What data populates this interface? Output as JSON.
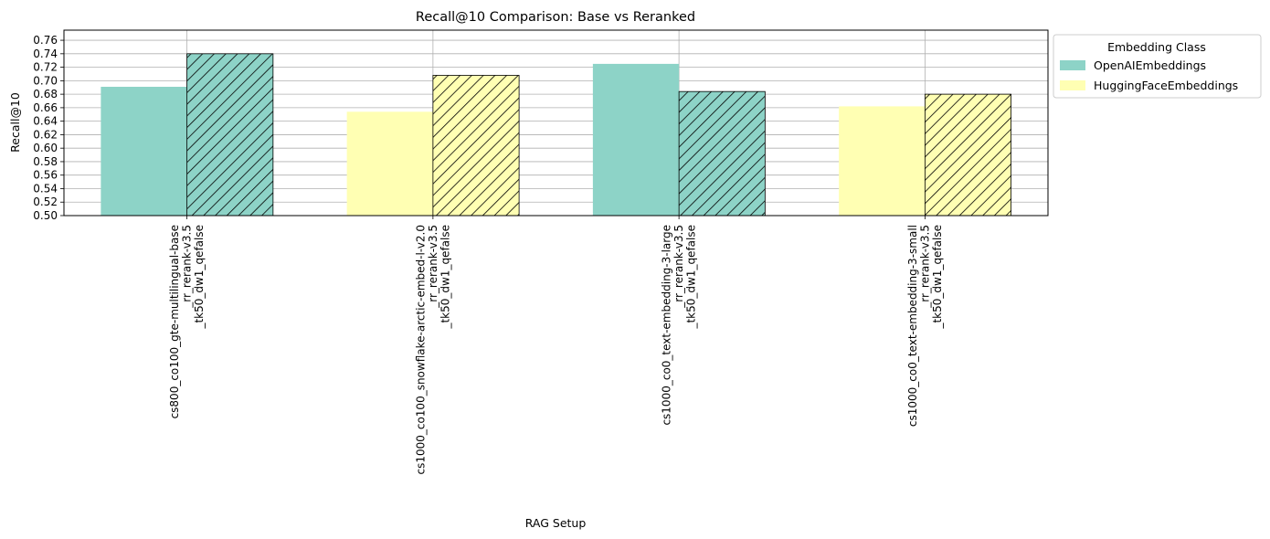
{
  "chart_data": {
    "type": "bar",
    "title": "Recall@10 Comparison: Base vs Reranked",
    "xlabel": "RAG Setup",
    "ylabel": "Recall@10",
    "ylim": [
      0.5,
      0.775
    ],
    "yticks": [
      0.5,
      0.52,
      0.54,
      0.56,
      0.58,
      0.6,
      0.62,
      0.64,
      0.66,
      0.68,
      0.7,
      0.72,
      0.74,
      0.76
    ],
    "grid": true,
    "categories": [
      [
        "cs800_co100_gte-multilingual-base",
        "_rr_rerank-v3.5",
        "_tk50_dw1_qefalse"
      ],
      [
        "cs1000_co100_snowflake-arctic-embed-l-v2.0",
        "_rr_rerank-v3.5",
        "_tk50_dw1_qefalse"
      ],
      [
        "cs1000_co0_text-embedding-3-large",
        "_rr_rerank-v3.5",
        "_tk50_dw1_qefalse"
      ],
      [
        "cs1000_co0_text-embedding-3-small",
        "_rr_rerank-v3.5",
        "_tk50_dw1_qefalse"
      ]
    ],
    "series": [
      {
        "values": [
          0.691,
          0.654,
          0.725,
          0.662
        ],
        "hatch": false
      },
      {
        "values": [
          0.74,
          0.708,
          0.684,
          0.68
        ],
        "hatch": true
      }
    ],
    "bar_class": [
      "OpenAIEmbeddings",
      "HuggingFaceEmbeddings",
      "OpenAIEmbeddings",
      "HuggingFaceEmbeddings"
    ],
    "legend": {
      "title": "Embedding Class",
      "placement": "outside-top-right",
      "entries": [
        {
          "label": "OpenAIEmbeddings",
          "color": "#8dd3c7"
        },
        {
          "label": "HuggingFaceEmbeddings",
          "color": "#ffffb3"
        }
      ]
    }
  }
}
